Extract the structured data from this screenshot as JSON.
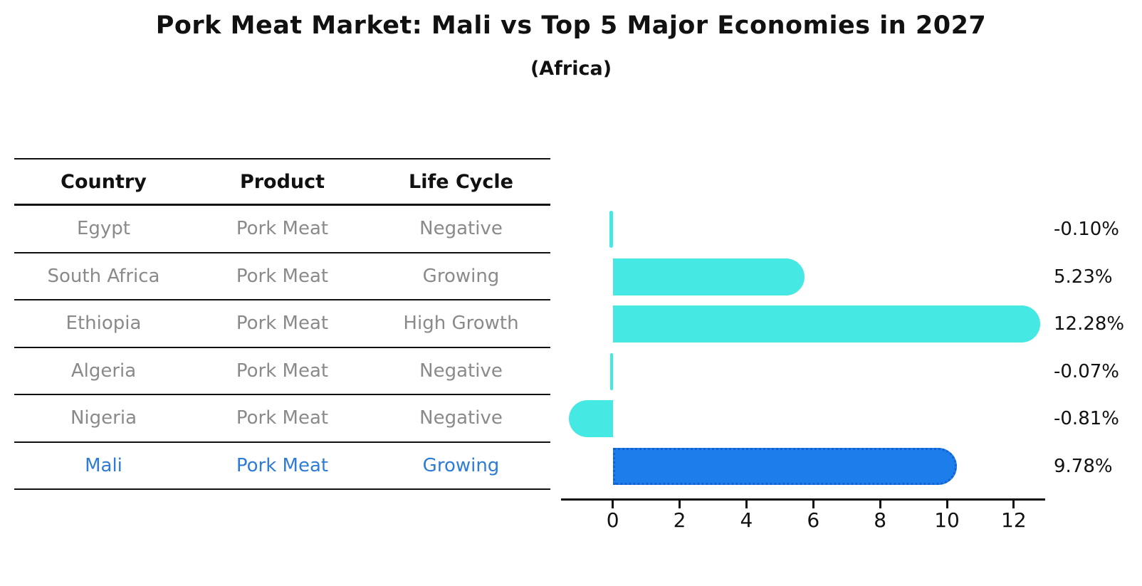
{
  "title": "Pork Meat Market: Mali vs Top 5 Major Economies in 2027",
  "subtitle": "(Africa)",
  "table": {
    "headers": [
      "Country",
      "Product",
      "Life Cycle"
    ],
    "rows": [
      {
        "country": "Egypt",
        "product": "Pork Meat",
        "life_cycle": "Negative",
        "highlight": false
      },
      {
        "country": "South Africa",
        "product": "Pork Meat",
        "life_cycle": "Growing",
        "highlight": false
      },
      {
        "country": "Ethiopia",
        "product": "Pork Meat",
        "life_cycle": "High Growth",
        "highlight": false
      },
      {
        "country": "Algeria",
        "product": "Pork Meat",
        "life_cycle": "Negative",
        "highlight": false
      },
      {
        "country": "Nigeria",
        "product": "Pork Meat",
        "life_cycle": "Negative",
        "highlight": false
      },
      {
        "country": "Mali",
        "product": "Pork Meat",
        "life_cycle": "Growing",
        "highlight": true
      }
    ]
  },
  "chart_data": {
    "type": "bar",
    "orientation": "horizontal",
    "title": "Pork Meat Market: Mali vs Top 5 Major Economies in 2027",
    "subtitle": "(Africa)",
    "categories": [
      "Egypt",
      "South Africa",
      "Ethiopia",
      "Algeria",
      "Nigeria",
      "Mali"
    ],
    "values": [
      -0.1,
      5.23,
      12.28,
      -0.07,
      -0.81,
      9.78
    ],
    "value_labels": [
      "-0.10%",
      "5.23%",
      "12.28%",
      "-0.07%",
      "-0.81%",
      "9.78%"
    ],
    "unit": "%",
    "x_ticks": [
      0,
      2,
      4,
      6,
      8,
      10,
      12
    ],
    "xlim": [
      -1.4,
      12.45
    ],
    "grid": false,
    "legend": "none",
    "bar_color": "#46e8e3",
    "highlight_color": "#1b7eeb",
    "highlight_border_color": "#135fd6",
    "highlight_index": 5
  },
  "colors": {
    "title_text": "#111111",
    "table_text": "#8a8a8a",
    "highlight_text": "#2e7cd6",
    "axis": "#111111"
  }
}
